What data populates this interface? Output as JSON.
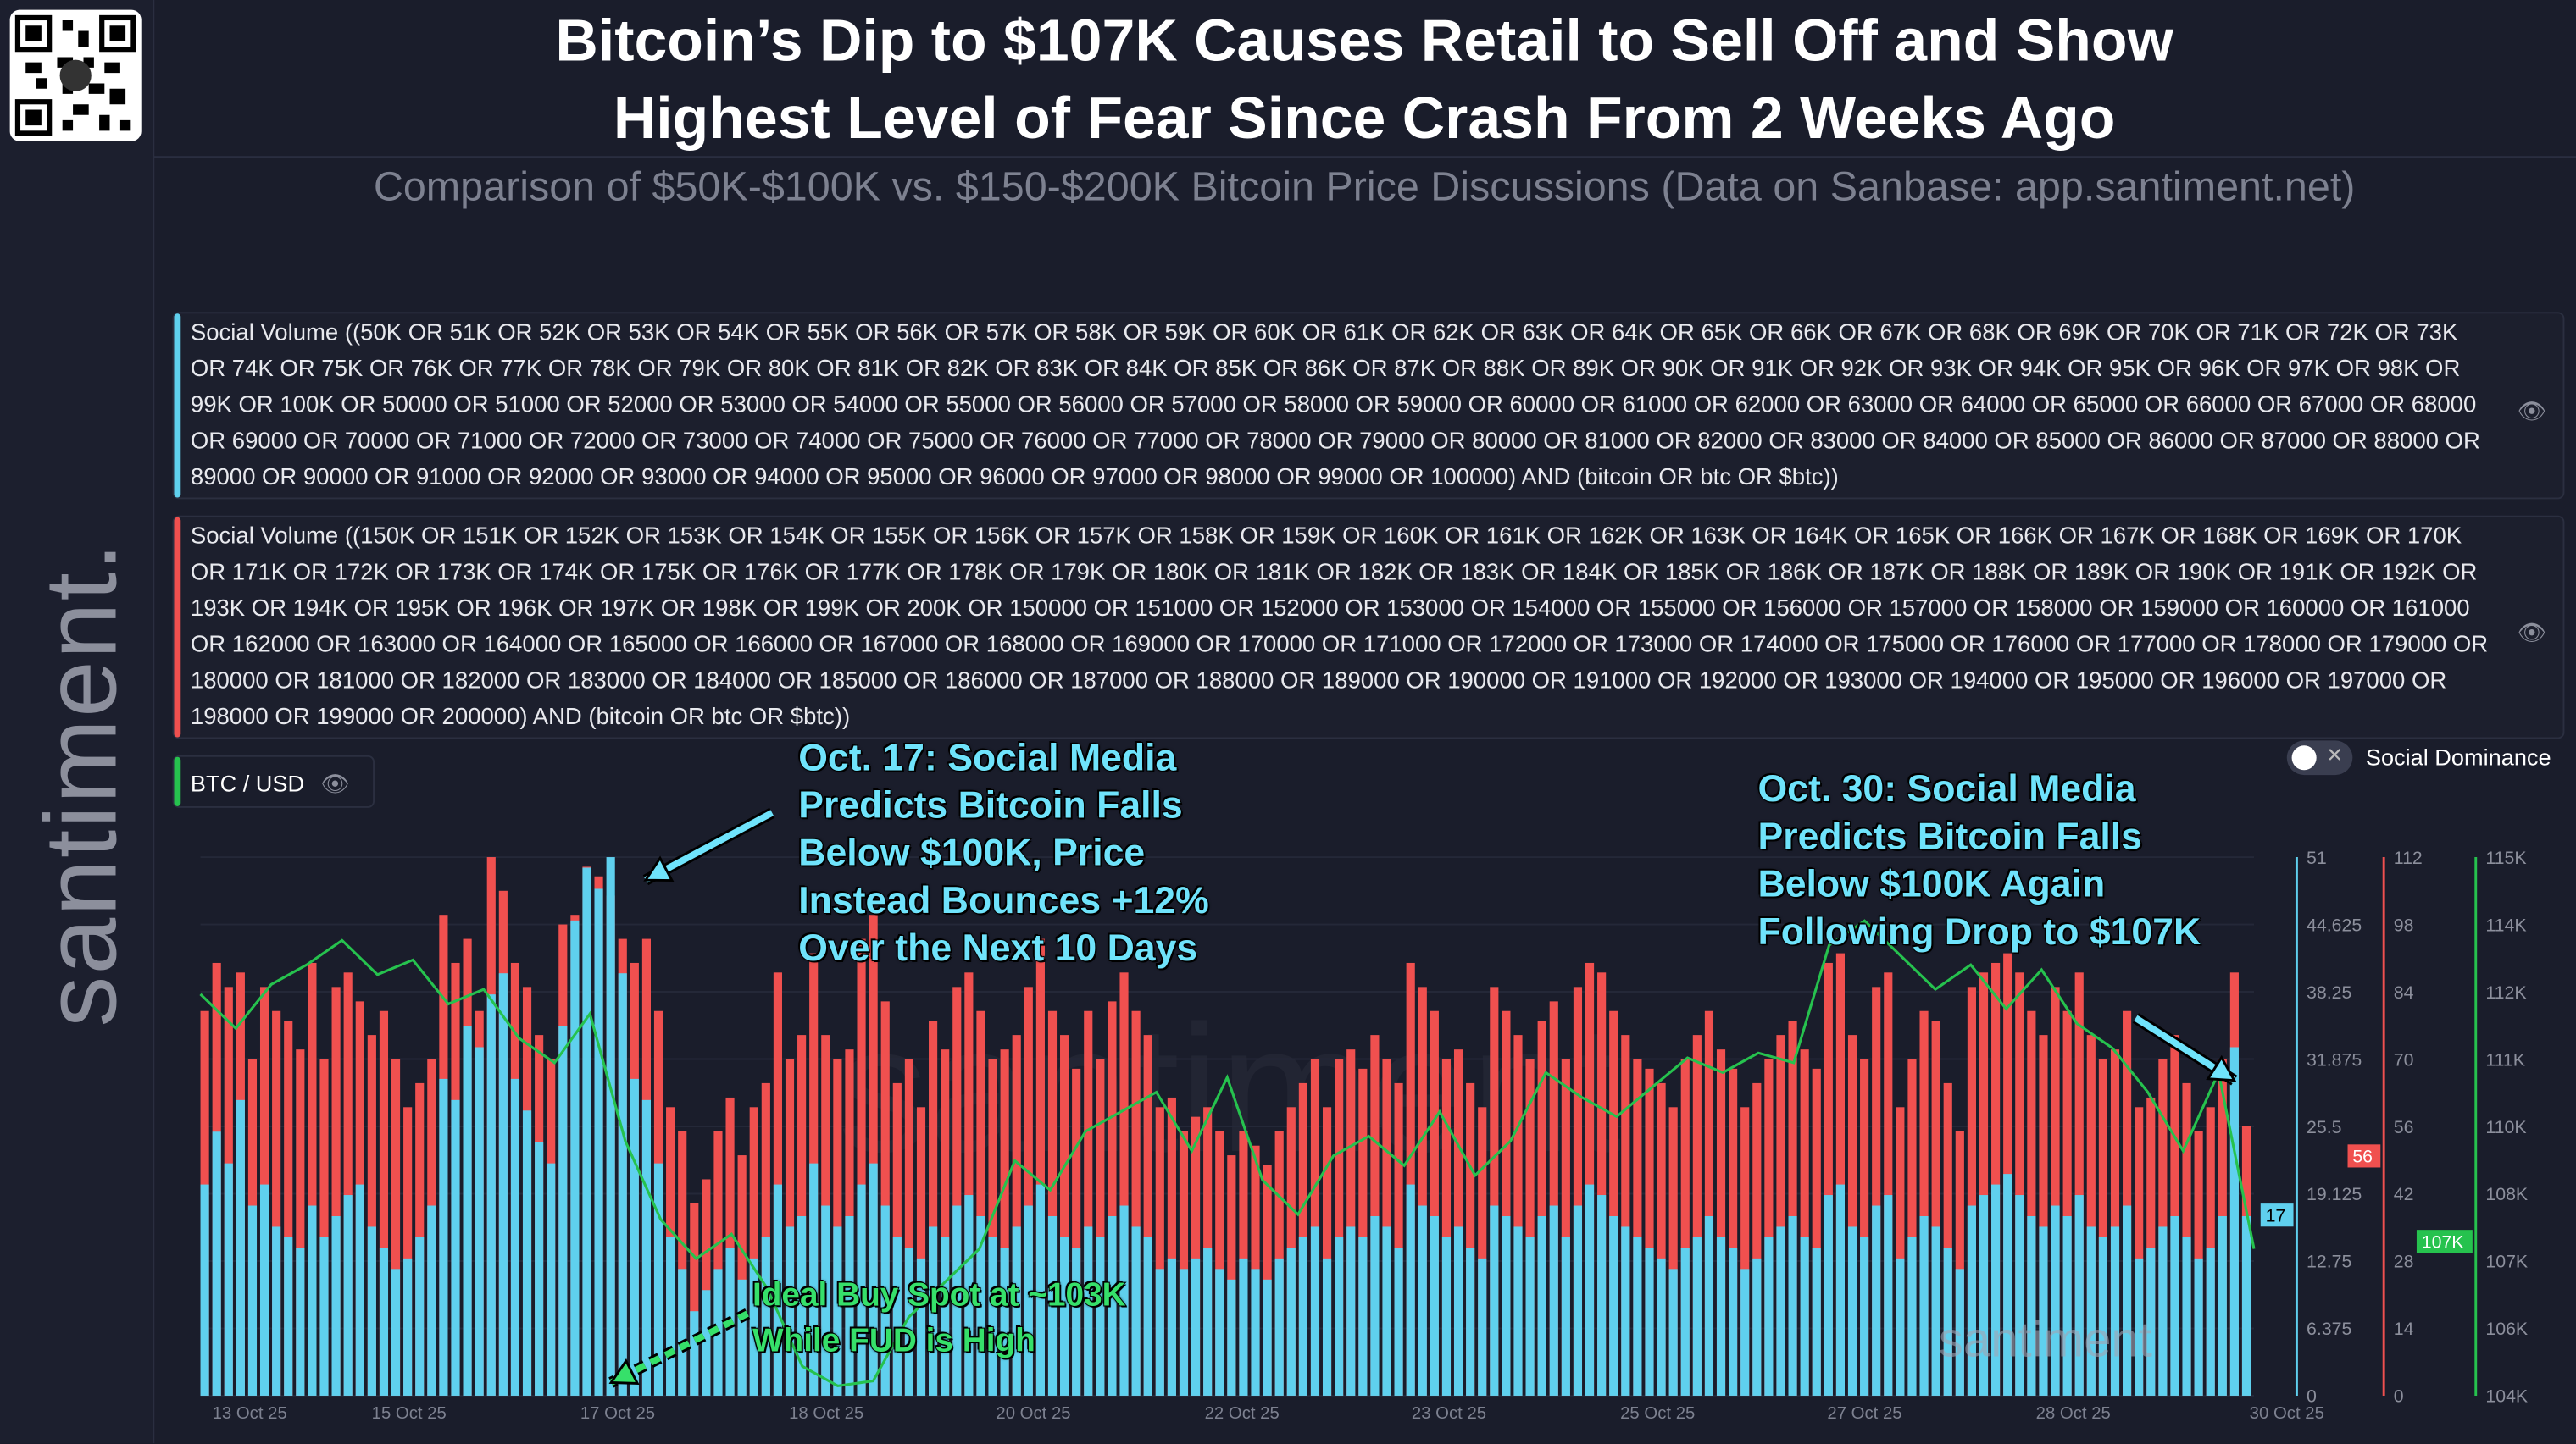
{
  "header": {
    "title_line1": "Bitcoin’s Dip to $107K Causes Retail to Sell Off and Show",
    "title_line2": "Highest Level of Fear Since Crash From 2 Weeks Ago",
    "subtitle": "Comparison of $50K-$100K vs. $150-$200K Bitcoin Price Discussions (Data on Sanbase: app.santiment.net)"
  },
  "brand": {
    "logo_text": "santiment.",
    "watermark": "santiment"
  },
  "queries": [
    {
      "color": "#5fd0ee",
      "text": "Social Volume ((50K OR 51K OR 52K OR 53K OR 54K OR 55K OR 56K OR 57K OR 58K OR 59K OR 60K OR 61K OR 62K OR 63K OR 64K OR 65K OR 66K OR 67K OR 68K OR 69K OR 70K OR 71K OR 72K OR 73K OR 74K OR 75K OR 76K OR 77K OR 78K OR 79K OR 80K OR 81K OR 82K OR 83K OR 84K OR 85K OR 86K OR 87K OR 88K OR 89K OR 90K OR 91K OR 92K OR 93K OR 94K OR 95K OR 96K OR 97K OR 98K OR 99K OR 100K OR 50000 OR 51000 OR 52000 OR 53000 OR 54000 OR 55000 OR 56000 OR 57000 OR 58000 OR 59000 OR 60000 OR 61000 OR 62000 OR 63000 OR 64000 OR 65000 OR 66000 OR 67000 OR 68000 OR 69000 OR 70000 OR 71000 OR 72000 OR 73000 OR 74000 OR 75000 OR 76000 OR 77000 OR 78000 OR 79000 OR 80000 OR 81000 OR 82000 OR 83000 OR 84000 OR 85000 OR 86000 OR 87000 OR 88000 OR 89000 OR 90000 OR 91000 OR 92000 OR 93000 OR 94000 OR 95000 OR 96000 OR 97000 OR 98000 OR 99000 OR 100000) AND (bitcoin OR btc OR $btc))"
    },
    {
      "color": "#f0504f",
      "text": "Social Volume ((150K OR 151K OR 152K OR 153K OR 154K OR 155K OR 156K OR 157K OR 158K OR 159K OR 160K OR 161K OR 162K OR 163K OR 164K OR 165K OR 166K OR 167K OR 168K OR 169K OR 170K OR 171K OR 172K OR 173K OR 174K OR 175K OR 176K OR 177K OR 178K OR 179K OR 180K OR 181K OR 182K OR 183K OR 184K OR 185K OR 186K OR 187K OR 188K OR 189K OR 190K OR 191K OR 192K OR 193K OR 194K OR 195K OR 196K OR 197K OR 198K OR 199K OR 200K OR 150000 OR 151000 OR 152000 OR 153000 OR 154000 OR 155000 OR 156000 OR 157000 OR 158000 OR 159000 OR 160000 OR 161000 OR 162000 OR 163000 OR 164000 OR 165000 OR 166000 OR 167000 OR 168000 OR 169000 OR 170000 OR 171000 OR 172000 OR 173000 OR 174000 OR 175000 OR 176000 OR 177000 OR 178000 OR 179000 OR 180000 OR 181000 OR 182000 OR 183000 OR 184000 OR 185000 OR 186000 OR 187000 OR 188000 OR 189000 OR 190000 OR 191000 OR 192000 OR 193000 OR 194000 OR 195000 OR 196000 OR 197000 OR 198000 OR 199000 OR 200000) AND (bitcoin OR btc OR $btc))"
    }
  ],
  "controls": {
    "btc_chip": "BTC / USD",
    "social_dominance_label": "Social Dominance",
    "social_dominance_on": false
  },
  "annotations": {
    "oct17": "Oct. 17: Social Media\nPredicts Bitcoin Falls\nBelow $100K, Price\nInstead Bounces +12%\nOver the Next 10 Days",
    "oct30": "Oct. 30: Social Media\nPredicts Bitcoin Falls\nBelow $100K Again\nFollowing Drop to $107K",
    "buy": "Ideal Buy Spot at ~103K\nWhile FUD is High"
  },
  "chart_data": {
    "type": "bar",
    "x_tick_labels": [
      "13 Oct 25",
      "15 Oct 25",
      "17 Oct 25",
      "18 Oct 25",
      "20 Oct 25",
      "22 Oct 25",
      "23 Oct 25",
      "25 Oct 25",
      "27 Oct 25",
      "28 Oct 25",
      "30 Oct 25"
    ],
    "axes": [
      {
        "color": "#5fd0ee",
        "range": [
          0,
          51
        ],
        "ticks": [
          "51",
          "44.625",
          "38.25",
          "31.875",
          "25.5",
          "19.125",
          "12.75",
          "6.375",
          "0"
        ],
        "last_value": "17"
      },
      {
        "color": "#f0504f",
        "range": [
          0,
          112
        ],
        "ticks": [
          "112",
          "98",
          "84",
          "70",
          "56",
          "42",
          "28",
          "14",
          "0"
        ],
        "last_value": "56"
      },
      {
        "color": "#26c24e",
        "range": [
          104000,
          115000
        ],
        "ticks": [
          "115K",
          "114K",
          "112K",
          "111K",
          "110K",
          "108K",
          "107K",
          "106K",
          "104K"
        ],
        "last_value": "107K"
      }
    ],
    "series": [
      {
        "color": "#f0504f",
        "type": "bar",
        "values": [
          80,
          90,
          85,
          88,
          70,
          85,
          80,
          78,
          72,
          90,
          70,
          85,
          88,
          82,
          75,
          80,
          70,
          60,
          65,
          70,
          100,
          90,
          95,
          80,
          112,
          105,
          90,
          85,
          75,
          70,
          98,
          100,
          110,
          108,
          104,
          95,
          90,
          95,
          80,
          60,
          55,
          40,
          45,
          55,
          62,
          50,
          60,
          65,
          88,
          70,
          75,
          92,
          75,
          70,
          72,
          95,
          100,
          82,
          65,
          70,
          60,
          78,
          72,
          85,
          88,
          80,
          70,
          72,
          75,
          85,
          95,
          80,
          75,
          68,
          80,
          70,
          82,
          88,
          80,
          75,
          60,
          62,
          55,
          58,
          60,
          55,
          50,
          55,
          52,
          48,
          55,
          60,
          65,
          70,
          60,
          70,
          72,
          68,
          75,
          70,
          65,
          90,
          85,
          80,
          70,
          72,
          65,
          60,
          85,
          80,
          75,
          70,
          78,
          82,
          70,
          85,
          90,
          88,
          80,
          75,
          70,
          68,
          65,
          60,
          70,
          75,
          80,
          72,
          68,
          60,
          65,
          70,
          75,
          78,
          72,
          68,
          90,
          92,
          75,
          70,
          85,
          88,
          60,
          70,
          80,
          78,
          65,
          55,
          85,
          88,
          90,
          92,
          88,
          80,
          75,
          85,
          80,
          88,
          75,
          70,
          72,
          80,
          60,
          62,
          70,
          75,
          65,
          55,
          60,
          70,
          88,
          56
        ]
      },
      {
        "color": "#5fd0ee",
        "type": "bar",
        "values": [
          20,
          25,
          22,
          28,
          18,
          20,
          16,
          15,
          14,
          18,
          15,
          17,
          19,
          20,
          16,
          14,
          12,
          13,
          15,
          18,
          30,
          28,
          35,
          33,
          38,
          40,
          30,
          27,
          24,
          22,
          35,
          45,
          50,
          48,
          51,
          40,
          30,
          28,
          22,
          15,
          12,
          8,
          10,
          12,
          14,
          11,
          13,
          15,
          20,
          16,
          17,
          22,
          18,
          16,
          17,
          20,
          22,
          18,
          15,
          14,
          13,
          16,
          15,
          18,
          19,
          17,
          15,
          14,
          16,
          18,
          20,
          17,
          15,
          14,
          16,
          15,
          17,
          18,
          16,
          15,
          12,
          13,
          12,
          13,
          14,
          12,
          11,
          13,
          12,
          11,
          13,
          14,
          15,
          16,
          13,
          15,
          16,
          15,
          17,
          16,
          14,
          20,
          18,
          17,
          15,
          16,
          14,
          13,
          18,
          17,
          16,
          15,
          17,
          18,
          15,
          18,
          20,
          19,
          17,
          16,
          15,
          14,
          13,
          12,
          14,
          15,
          17,
          15,
          14,
          12,
          13,
          15,
          16,
          17,
          15,
          14,
          19,
          20,
          16,
          15,
          18,
          19,
          13,
          15,
          17,
          16,
          14,
          12,
          18,
          19,
          20,
          21,
          19,
          17,
          16,
          18,
          17,
          19,
          16,
          15,
          16,
          18,
          13,
          14,
          16,
          17,
          15,
          13,
          14,
          17,
          33,
          17
        ]
      },
      {
        "color": "#26c24e",
        "type": "line",
        "values": [
          112200,
          111500,
          112400,
          112800,
          113300,
          112600,
          112900,
          112000,
          112300,
          111300,
          110800,
          111800,
          109200,
          107600,
          106800,
          107300,
          106200,
          104600,
          104200,
          104300,
          105600,
          106300,
          107000,
          108800,
          108200,
          109400,
          109800,
          110200,
          109000,
          110500,
          108400,
          107700,
          108900,
          109300,
          108700,
          109800,
          108500,
          109200,
          110600,
          110100,
          109700,
          110300,
          110900,
          110600,
          111000,
          110800,
          113200,
          113700,
          113000,
          112300,
          112800,
          111900,
          112700,
          111600,
          111100,
          110200,
          109000,
          110600,
          107000
        ]
      }
    ]
  }
}
